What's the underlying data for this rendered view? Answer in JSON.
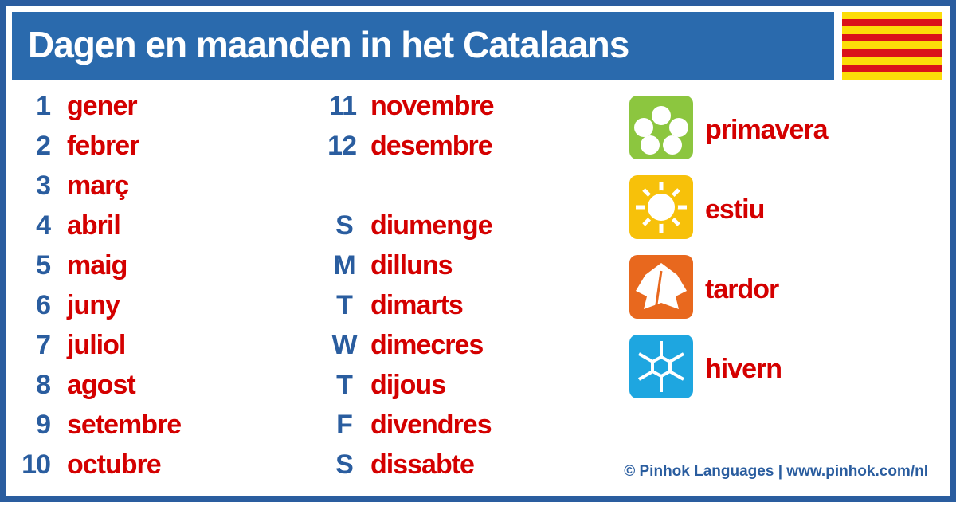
{
  "header": {
    "title": "Dagen en maanden in het Catalaans"
  },
  "months": [
    {
      "number": 1,
      "name": "gener"
    },
    {
      "number": 2,
      "name": "febrer"
    },
    {
      "number": 3,
      "name": "març"
    },
    {
      "number": 4,
      "name": "abril"
    },
    {
      "number": 5,
      "name": "maig"
    },
    {
      "number": 6,
      "name": "juny"
    },
    {
      "number": 7,
      "name": "juliol"
    },
    {
      "number": 8,
      "name": "agost"
    },
    {
      "number": 9,
      "name": "setembre"
    },
    {
      "number": 10,
      "name": "octubre"
    },
    {
      "number": 11,
      "name": "novembre"
    },
    {
      "number": 12,
      "name": "desembre"
    }
  ],
  "days": [
    {
      "letter": "S",
      "name": "diumenge"
    },
    {
      "letter": "M",
      "name": "dilluns"
    },
    {
      "letter": "T",
      "name": "dimarts"
    },
    {
      "letter": "W",
      "name": "dimecres"
    },
    {
      "letter": "T",
      "name": "dijous"
    },
    {
      "letter": "F",
      "name": "divendres"
    },
    {
      "letter": "S",
      "name": "dissabte"
    }
  ],
  "seasons": [
    {
      "name": "primavera"
    },
    {
      "name": "estiu"
    },
    {
      "name": "tardor"
    },
    {
      "name": "hivern"
    }
  ],
  "footer": {
    "credit": "© Pinhok Languages | www.pinhok.com/nl"
  }
}
